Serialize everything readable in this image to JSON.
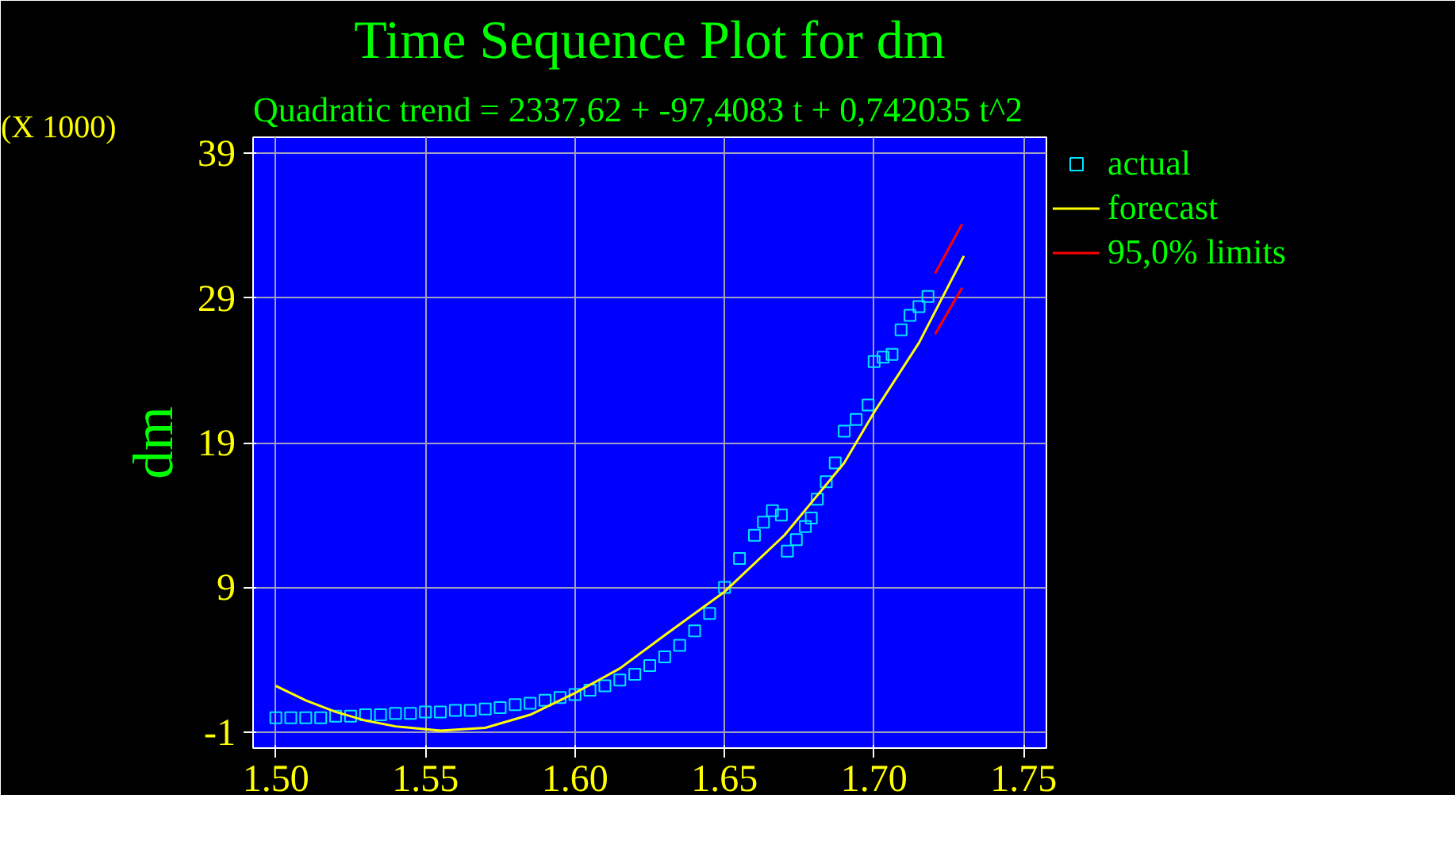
{
  "chart_data": {
    "type": "scatter",
    "title": "Time Sequence Plot for dm",
    "subtitle": "Quadratic trend = 2337,62 + -97,4083 t  + 0,742035 t^2",
    "ylabel": "dm",
    "annotations": [
      "(X 1000)"
    ],
    "xlim": [
      1.4924,
      1.7576
    ],
    "ylim": [
      -2.1,
      40.1
    ],
    "xticks": [
      {
        "value": 1.5,
        "label": "1.50"
      },
      {
        "value": 1.55,
        "label": "1.55"
      },
      {
        "value": 1.6,
        "label": "1.60"
      },
      {
        "value": 1.65,
        "label": "1.65"
      },
      {
        "value": 1.7,
        "label": "1.70"
      },
      {
        "value": 1.75,
        "label": "1.75"
      }
    ],
    "yticks": [
      -1,
      9,
      19,
      29,
      39
    ],
    "grid": true,
    "legend": "right",
    "series": [
      {
        "name": "actual",
        "marker": "square",
        "color": "#00e5ff",
        "x": [
          1.5,
          1.505,
          1.51,
          1.515,
          1.52,
          1.525,
          1.53,
          1.535,
          1.54,
          1.545,
          1.55,
          1.555,
          1.56,
          1.565,
          1.57,
          1.575,
          1.58,
          1.585,
          1.59,
          1.595,
          1.6,
          1.605,
          1.61,
          1.615,
          1.62,
          1.625,
          1.63,
          1.635,
          1.64,
          1.645,
          1.65,
          1.655,
          1.66,
          1.663,
          1.666,
          1.669,
          1.671,
          1.674,
          1.677,
          1.679,
          1.681,
          1.684,
          1.687,
          1.69,
          1.694,
          1.698,
          1.7,
          1.703,
          1.706,
          1.709,
          1.712,
          1.715,
          1.718
        ],
        "values": [
          0.0,
          0.0,
          0.0,
          0.0,
          0.1,
          0.1,
          0.2,
          0.2,
          0.3,
          0.3,
          0.4,
          0.4,
          0.5,
          0.5,
          0.6,
          0.7,
          0.9,
          1.0,
          1.2,
          1.4,
          1.6,
          1.9,
          2.2,
          2.6,
          3.0,
          3.6,
          4.2,
          5.0,
          6.0,
          7.2,
          9.0,
          11.0,
          12.6,
          13.5,
          14.3,
          14.0,
          11.5,
          12.3,
          13.2,
          13.8,
          15.1,
          16.3,
          17.6,
          19.8,
          20.6,
          21.6,
          24.6,
          24.9,
          25.1,
          26.8,
          27.8,
          28.4,
          29.1
        ]
      },
      {
        "name": "forecast",
        "type": "line",
        "color": "#ffff00",
        "x": [
          1.5,
          1.51,
          1.52,
          1.53,
          1.54,
          1.555,
          1.57,
          1.585,
          1.6,
          1.615,
          1.63,
          1.65,
          1.67,
          1.69,
          1.7,
          1.715,
          1.73
        ],
        "values": [
          2.2,
          1.2,
          0.4,
          -0.2,
          -0.6,
          -0.9,
          -0.7,
          0.2,
          1.7,
          3.4,
          5.7,
          8.7,
          12.6,
          17.6,
          21.1,
          25.9,
          31.9
        ]
      },
      {
        "name": "95,0% limits",
        "type": "line",
        "color": "#ff0000",
        "x": [
          1.7204,
          1.7294
        ],
        "values": [
          30.7,
          34.1
        ]
      },
      {
        "type": "line",
        "color": "#ff0000",
        "x": [
          1.7204,
          1.7294
        ],
        "values": [
          26.5,
          29.7
        ]
      }
    ]
  }
}
